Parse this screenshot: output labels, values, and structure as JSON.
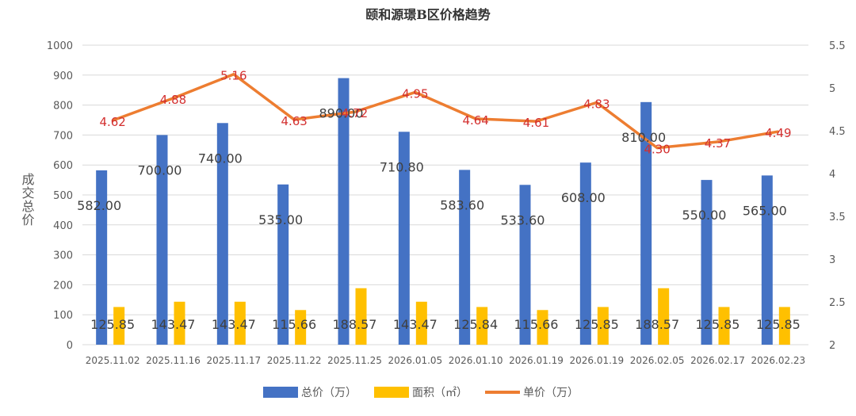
{
  "chart_data": {
    "type": "bar+line",
    "title": "颐和源璟B区价格趋势",
    "ylabel": "成交总价",
    "ylim": [
      0,
      1000
    ],
    "y_ticks": [
      0,
      100,
      200,
      300,
      400,
      500,
      600,
      700,
      800,
      900,
      1000
    ],
    "y2lim": [
      2,
      5.5
    ],
    "y2_ticks": [
      "2",
      "2.5",
      "3",
      "3.5",
      "4",
      "4.5",
      "5",
      "5.5"
    ],
    "categories": [
      "2025.11.02",
      "2025.11.16",
      "2025.11.17",
      "2025.11.22",
      "2025.11.25",
      "2026.01.05",
      "2026.01.10",
      "2026.01.19",
      "2026.01.19",
      "2026.02.05",
      "2026.02.17",
      "2026.02.23"
    ],
    "series": [
      {
        "name": "总价（万）",
        "kind": "bar",
        "axis": "left",
        "color": "#4472c4",
        "values": [
          582.0,
          700.0,
          740.0,
          535.0,
          890.0,
          710.8,
          583.6,
          533.6,
          608.0,
          810.0,
          550.0,
          565.0
        ],
        "labels": [
          "582.00",
          "700.00",
          "740.00",
          "535.00",
          "890.00",
          "710.80",
          "583.60",
          "533.60",
          "608.00",
          "810.00",
          "550.00",
          "565.00"
        ]
      },
      {
        "name": "面积（㎡）",
        "kind": "bar",
        "axis": "left",
        "color": "#ffc000",
        "values": [
          125.85,
          143.47,
          143.47,
          115.66,
          188.57,
          143.47,
          125.84,
          115.66,
          125.85,
          188.57,
          125.85,
          125.85
        ],
        "labels": [
          "125.85",
          "143.47",
          "143.47",
          "115.66",
          "188.57",
          "143.47",
          "125.84",
          "115.66",
          "125.85",
          "188.57",
          "125.85",
          "125.85"
        ]
      },
      {
        "name": "单价（万）",
        "kind": "line",
        "axis": "right",
        "color": "#ed7d31",
        "label_color": "#d32f2f",
        "values": [
          4.62,
          4.88,
          5.16,
          4.63,
          4.72,
          4.95,
          4.64,
          4.61,
          4.83,
          4.3,
          4.37,
          4.49
        ],
        "labels": [
          "4.62",
          "4.88",
          "5.16",
          "4.63",
          "4.72",
          "4.95",
          "4.64",
          "4.61",
          "4.83",
          "4.30",
          "4.37",
          "4.49"
        ]
      }
    ],
    "grid": true,
    "legend": "bottom"
  }
}
